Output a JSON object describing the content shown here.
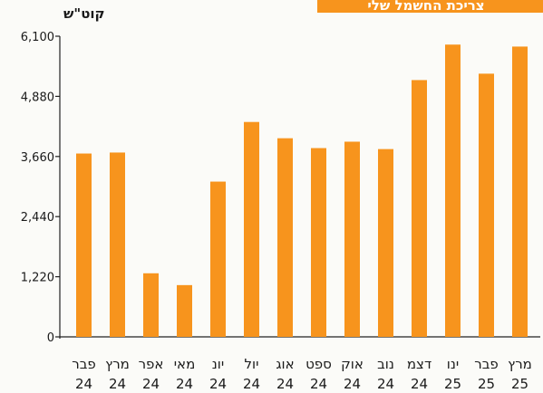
{
  "chart_data": {
    "type": "bar",
    "ylabel": "קוט\"ש",
    "title_partial": "צריכת החשמל שלי",
    "categories": [
      {
        "month": "פבר",
        "year": "24"
      },
      {
        "month": "מרץ",
        "year": "24"
      },
      {
        "month": "אפר",
        "year": "24"
      },
      {
        "month": "מאי",
        "year": "24"
      },
      {
        "month": "יונ",
        "year": "24"
      },
      {
        "month": "יול",
        "year": "24"
      },
      {
        "month": "אוג",
        "year": "24"
      },
      {
        "month": "ספט",
        "year": "24"
      },
      {
        "month": "אוק",
        "year": "24"
      },
      {
        "month": "נוב",
        "year": "24"
      },
      {
        "month": "דצמ",
        "year": "24"
      },
      {
        "month": "ינו",
        "year": "25"
      },
      {
        "month": "פבר",
        "year": "25"
      },
      {
        "month": "מרץ",
        "year": "25"
      }
    ],
    "values": [
      3720,
      3740,
      1290,
      1050,
      3150,
      4360,
      4030,
      3830,
      3960,
      3810,
      5210,
      5930,
      5340,
      5890
    ],
    "yticks": [
      "0",
      "1,220",
      "2,440",
      "3,660",
      "4,880",
      "6,100"
    ],
    "ylim": [
      0,
      6100
    ],
    "grid": false,
    "bar_color": "#f7941d",
    "banner_color": "#f7941d"
  }
}
